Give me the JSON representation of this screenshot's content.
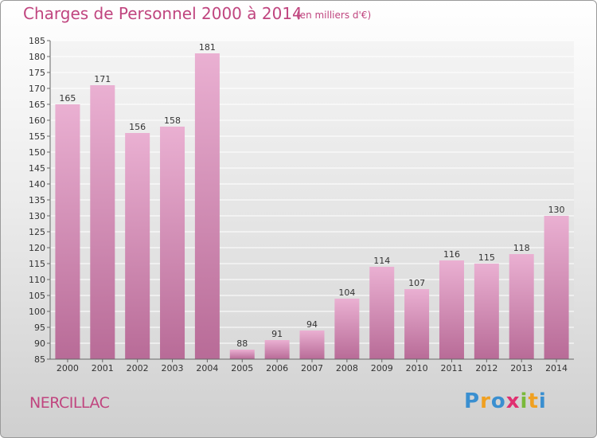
{
  "title": "Charges de Personnel 2000 à 2014",
  "subtitle": "(en milliers d'€)",
  "commune": "NERCILLAC",
  "logo": {
    "letters": [
      "P",
      "r",
      "o",
      "x",
      "i",
      "t",
      "i"
    ],
    "colors": [
      "#3a8fd0",
      "#f0a020",
      "#3a8fd0",
      "#e03070",
      "#7ab93a",
      "#f0a020",
      "#3a8fd0"
    ]
  },
  "chart_data": {
    "type": "bar",
    "categories": [
      "2000",
      "2001",
      "2002",
      "2003",
      "2004",
      "2005",
      "2006",
      "2007",
      "2008",
      "2009",
      "2010",
      "2011",
      "2012",
      "2013",
      "2014"
    ],
    "values": [
      165,
      171,
      156,
      158,
      181,
      88,
      91,
      94,
      104,
      114,
      107,
      116,
      115,
      118,
      130
    ],
    "ylim": [
      85,
      185
    ],
    "yticks": [
      85,
      90,
      95,
      100,
      105,
      110,
      115,
      120,
      125,
      130,
      135,
      140,
      145,
      150,
      155,
      160,
      165,
      170,
      175,
      180,
      185
    ],
    "grid": true,
    "bar_color": "#d98ab5"
  }
}
